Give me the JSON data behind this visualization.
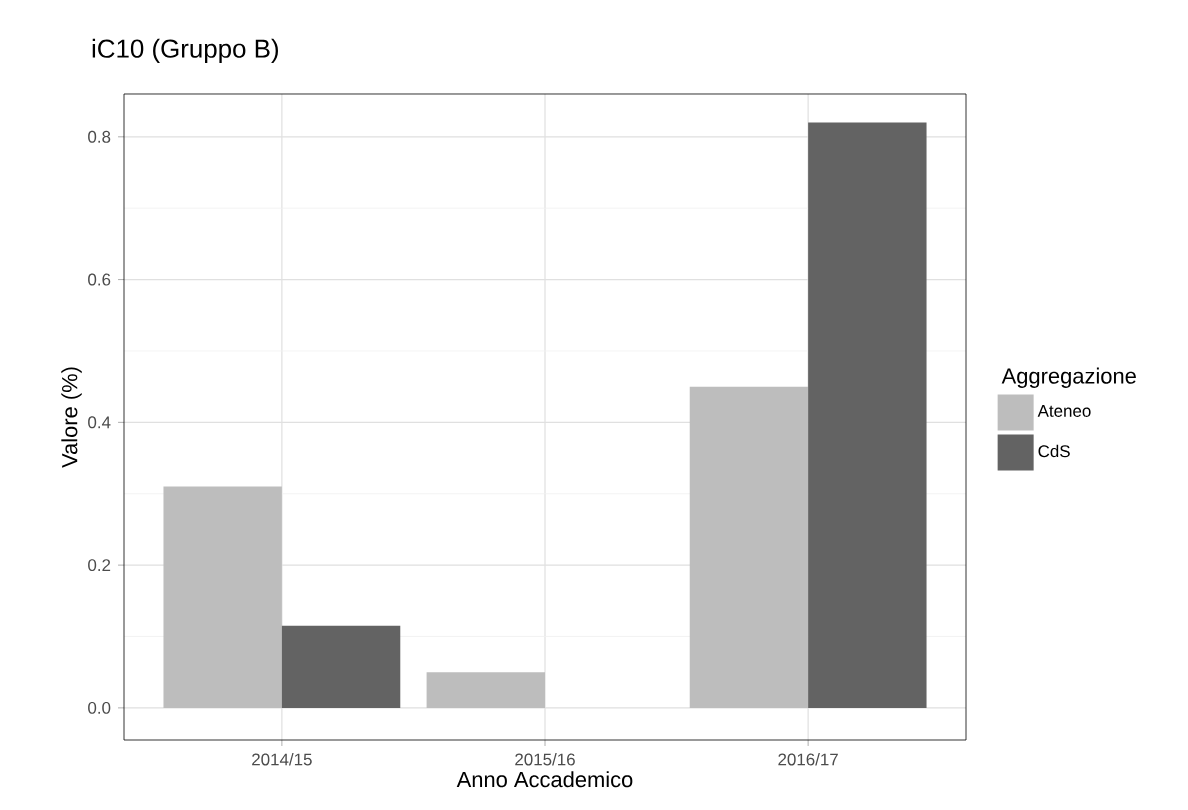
{
  "chart_data": {
    "type": "bar",
    "title": "iC10 (Gruppo B)",
    "xlabel": "Anno Accademico",
    "ylabel": "Valore (%)",
    "legend_title": "Aggregazione",
    "categories": [
      "2014/15",
      "2015/16",
      "2016/17"
    ],
    "series": [
      {
        "name": "Ateneo",
        "color": "#bdbdbd",
        "values": [
          0.31,
          0.05,
          0.45
        ]
      },
      {
        "name": "CdS",
        "color": "#636363",
        "values": [
          0.115,
          0,
          0.82
        ]
      }
    ],
    "ylim": [
      -0.045,
      0.86
    ],
    "yticks": [
      {
        "value": 0,
        "label": "0.0"
      },
      0.2,
      0.4,
      0.6,
      0.8
    ],
    "grid": true,
    "legend": "right"
  }
}
